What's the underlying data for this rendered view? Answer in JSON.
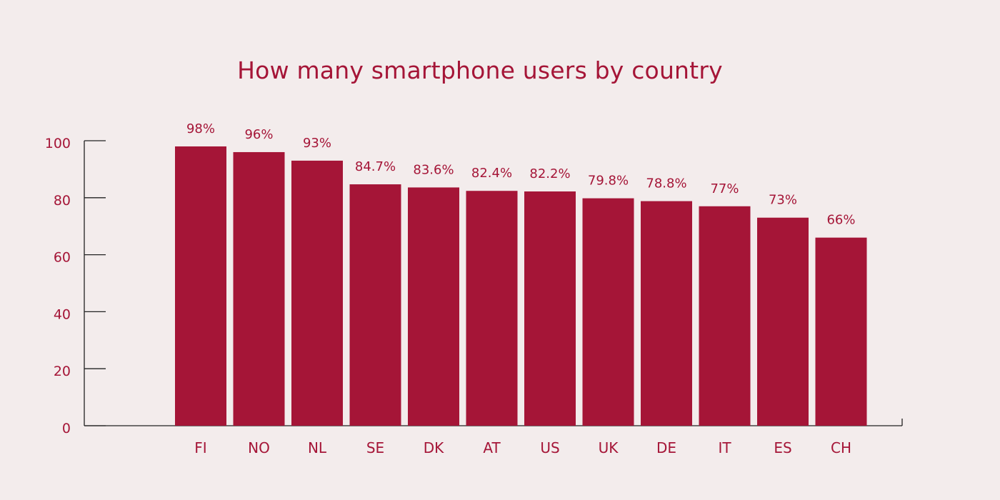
{
  "chart_data": {
    "type": "bar",
    "title": "How many smartphone users by country",
    "xlabel": "",
    "ylabel": "",
    "categories": [
      "FI",
      "NO",
      "NL",
      "SE",
      "DK",
      "AT",
      "US",
      "UK",
      "DE",
      "IT",
      "ES",
      "CH"
    ],
    "values": [
      98,
      96,
      93,
      84.7,
      83.6,
      82.4,
      82.2,
      79.8,
      78.8,
      77,
      73,
      66
    ],
    "data_labels": [
      "98%",
      "96%",
      "93%",
      "84.7%",
      "83.6%",
      "82.4%",
      "82.2%",
      "79.8%",
      "78.8%",
      "77%",
      "73%",
      "66%"
    ],
    "ylim": [
      0,
      100
    ],
    "yticks": [
      0,
      20,
      40,
      60,
      80,
      100
    ],
    "ytick_labels": [
      "0",
      "20",
      "40",
      "60",
      "80",
      "100"
    ],
    "grid": false,
    "legend": "none",
    "colors": {
      "bar": "#a51537",
      "text": "#a51537",
      "axis": "#222222",
      "background": "#f3ecec"
    }
  }
}
